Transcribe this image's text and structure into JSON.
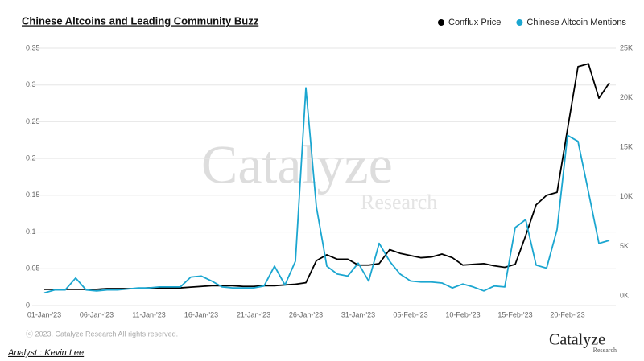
{
  "chart_data": {
    "type": "line",
    "title": "Chinese Altcoins and Leading Community Buzz",
    "categories": [
      "01-Jan-'23",
      null,
      null,
      null,
      null,
      "06-Jan-'23",
      null,
      null,
      null,
      null,
      "11-Jan-'23",
      null,
      null,
      null,
      null,
      "16-Jan-'23",
      null,
      null,
      null,
      null,
      "21-Jan-'23",
      null,
      null,
      null,
      null,
      "26-Jan-'23",
      null,
      null,
      null,
      null,
      "31-Jan-'23",
      null,
      null,
      null,
      null,
      "05-Feb-'23",
      null,
      null,
      null,
      null,
      "10-Feb-'23",
      null,
      null,
      null,
      null,
      "15-Feb-'23",
      null,
      null,
      null,
      null,
      "20-Feb-'23",
      null,
      null,
      null,
      null
    ],
    "series": [
      {
        "name": "Conflux Price",
        "color": "#000000",
        "values": [
          0.022,
          0.022,
          0.022,
          0.022,
          0.022,
          0.022,
          0.023,
          0.023,
          0.023,
          0.023,
          0.024,
          0.024,
          0.024,
          0.024,
          0.025,
          0.026,
          0.027,
          0.027,
          0.027,
          0.026,
          0.026,
          0.027,
          0.027,
          0.028,
          0.029,
          0.031,
          0.061,
          0.069,
          0.063,
          0.063,
          0.055,
          0.055,
          0.057,
          0.076,
          0.071,
          0.068,
          0.065,
          0.066,
          0.07,
          0.065,
          0.055,
          0.056,
          0.057,
          0.054,
          0.052,
          0.056,
          0.095,
          0.137,
          0.15,
          0.154,
          0.24,
          0.325,
          0.329,
          0.282,
          0.303
        ]
      },
      {
        "name": "Chinese Altcoin Mentions",
        "color": "#1ba6d0",
        "axis": "y2",
        "values": [
          300,
          600,
          600,
          1800,
          600,
          500,
          600,
          600,
          700,
          800,
          800,
          900,
          900,
          900,
          1900,
          2000,
          1500,
          900,
          800,
          800,
          800,
          1000,
          3000,
          1100,
          3500,
          21000,
          9000,
          3000,
          2200,
          2000,
          3300,
          1500,
          5300,
          3500,
          2200,
          1500,
          1400,
          1400,
          1300,
          800,
          1200,
          900,
          500,
          1000,
          900,
          6900,
          7700,
          3100,
          2800,
          6700,
          16200,
          15600,
          10500,
          5300,
          5600
        ]
      }
    ],
    "ylim": [
      0,
      0.35
    ],
    "yticks": [
      0,
      0.05,
      0.1,
      0.15,
      0.2,
      0.25,
      0.3,
      0.35
    ],
    "y2lim": [
      0,
      25000
    ],
    "y2ticks": [
      {
        "value": 0,
        "label": "0K"
      },
      {
        "value": 5000,
        "label": "5K"
      },
      {
        "value": 10000,
        "label": "10K"
      },
      {
        "value": 15000,
        "label": "15K"
      },
      {
        "value": 20000,
        "label": "20K"
      },
      {
        "value": 25000,
        "label": "25K"
      }
    ],
    "grid": true,
    "copyright": "ⓒ 2023. Catalyze Research All rights reserved.",
    "analyst": "Analyst : Kevin Lee",
    "watermark": {
      "name": "Catalyze",
      "sub": "Research"
    },
    "logo": {
      "name": "Catalyze",
      "sub": "Research"
    }
  }
}
